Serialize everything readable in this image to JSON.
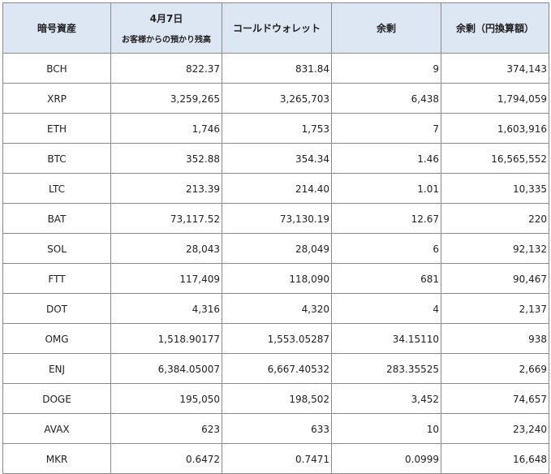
{
  "header": {
    "asset": "暗号資産",
    "customer_date": "4月7日",
    "customer_sub": "お客様からの預かり残高",
    "cold_wallet": "コールドウォレット",
    "surplus": "余剰",
    "surplus_jpy": "余剰（円換算額）"
  },
  "rows": [
    {
      "symbol": "BCH",
      "customer": "822.37",
      "cold": "831.84",
      "surplus": "9",
      "jpy": "374,143"
    },
    {
      "symbol": "XRP",
      "customer": "3,259,265",
      "cold": "3,265,703",
      "surplus": "6,438",
      "jpy": "1,794,059"
    },
    {
      "symbol": "ETH",
      "customer": "1,746",
      "cold": "1,753",
      "surplus": "7",
      "jpy": "1,603,916"
    },
    {
      "symbol": "BTC",
      "customer": "352.88",
      "cold": "354.34",
      "surplus": "1.46",
      "jpy": "16,565,552"
    },
    {
      "symbol": "LTC",
      "customer": "213.39",
      "cold": "214.40",
      "surplus": "1.01",
      "jpy": "10,335"
    },
    {
      "symbol": "BAT",
      "customer": "73,117.52",
      "cold": "73,130.19",
      "surplus": "12.67",
      "jpy": "220"
    },
    {
      "symbol": "SOL",
      "customer": "28,043",
      "cold": "28,049",
      "surplus": "6",
      "jpy": "92,132"
    },
    {
      "symbol": "FTT",
      "customer": "117,409",
      "cold": "118,090",
      "surplus": "681",
      "jpy": "90,467"
    },
    {
      "symbol": "DOT",
      "customer": "4,316",
      "cold": "4,320",
      "surplus": "4",
      "jpy": "2,137"
    },
    {
      "symbol": "OMG",
      "customer": "1,518.90177",
      "cold": "1,553.05287",
      "surplus": "34.15110",
      "jpy": "938"
    },
    {
      "symbol": "ENJ",
      "customer": "6,384.05007",
      "cold": "6,667.40532",
      "surplus": "283.35525",
      "jpy": "2,669"
    },
    {
      "symbol": "DOGE",
      "customer": "195,050",
      "cold": "198,502",
      "surplus": "3,452",
      "jpy": "74,657"
    },
    {
      "symbol": "AVAX",
      "customer": "623",
      "cold": "633",
      "surplus": "10",
      "jpy": "23,240"
    },
    {
      "symbol": "MKR",
      "customer": "0.6472",
      "cold": "0.7471",
      "surplus": "0.0999",
      "jpy": "16,648"
    }
  ]
}
